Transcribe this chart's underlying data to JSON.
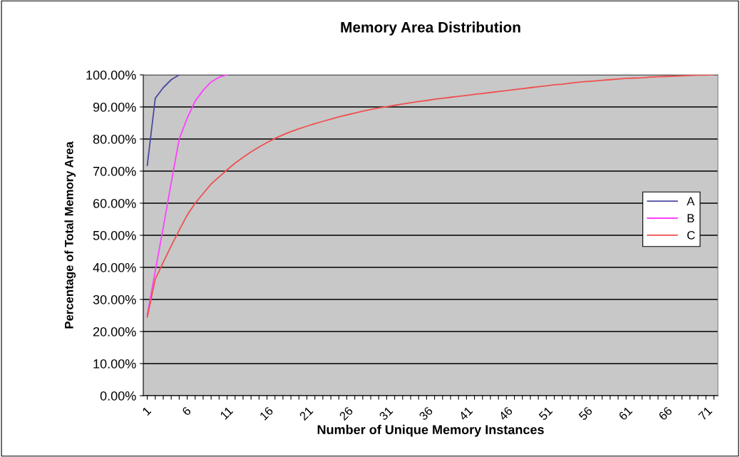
{
  "chart_data": {
    "type": "line",
    "title": "Memory Area Distribution",
    "xlabel": "Number of Unique Memory Instances",
    "ylabel": "Percentage of Total Memory Area",
    "categories": [
      "1",
      null,
      null,
      null,
      null,
      "6",
      null,
      null,
      null,
      null,
      "11",
      null,
      null,
      null,
      null,
      "16",
      null,
      null,
      null,
      null,
      "21",
      null,
      null,
      null,
      null,
      "26",
      null,
      null,
      null,
      null,
      "31",
      null,
      null,
      null,
      null,
      "36",
      null,
      null,
      null,
      null,
      "41",
      null,
      null,
      null,
      null,
      "46",
      null,
      null,
      null,
      null,
      "51",
      null,
      null,
      null,
      null,
      "56",
      null,
      null,
      null,
      null,
      "61",
      null,
      null,
      null,
      null,
      "66",
      null,
      null,
      null,
      null,
      "71",
      null
    ],
    "series": [
      {
        "name": "A",
        "color": "#4b4ba0",
        "values": [
          71.8,
          92.7,
          96.0,
          98.5,
          100,
          null,
          null,
          null,
          null,
          null,
          null,
          null,
          null,
          null,
          null,
          null,
          null,
          null,
          null,
          null,
          null,
          null,
          null,
          null,
          null,
          null,
          null,
          null,
          null,
          null,
          null,
          null,
          null,
          null,
          null,
          null,
          null,
          null,
          null,
          null,
          null,
          null,
          null,
          null,
          null,
          null,
          null,
          null,
          null,
          null,
          null,
          null,
          null,
          null,
          null,
          null,
          null,
          null,
          null,
          null,
          null,
          null,
          null,
          null,
          null,
          null,
          null,
          null,
          null,
          null,
          null,
          null
        ]
      },
      {
        "name": "B",
        "color": "#ff40ff",
        "values": [
          25.2,
          38.9,
          52.4,
          66.4,
          80.0,
          86.5,
          91.8,
          95.2,
          97.8,
          99.3,
          100,
          null,
          null,
          null,
          null,
          null,
          null,
          null,
          null,
          null,
          null,
          null,
          null,
          null,
          null,
          null,
          null,
          null,
          null,
          null,
          null,
          null,
          null,
          null,
          null,
          null,
          null,
          null,
          null,
          null,
          null,
          null,
          null,
          null,
          null,
          null,
          null,
          null,
          null,
          null,
          null,
          null,
          null,
          null,
          null,
          null,
          null,
          null,
          null,
          null,
          null,
          null,
          null,
          null,
          null,
          null,
          null,
          null,
          null,
          null,
          null,
          null
        ]
      },
      {
        "name": "C",
        "color": "#f05050",
        "values": [
          24.5,
          36.3,
          41.6,
          46.7,
          51.6,
          56.3,
          60.0,
          63.0,
          66.0,
          68.2,
          70.4,
          72.5,
          74.3,
          76.0,
          77.5,
          78.9,
          80.2,
          81.3,
          82.3,
          83.2,
          84.0,
          84.8,
          85.5,
          86.2,
          86.9,
          87.5,
          88.1,
          88.7,
          89.2,
          89.7,
          90.1,
          90.5,
          90.9,
          91.3,
          91.7,
          92.0,
          92.4,
          92.7,
          93.0,
          93.3,
          93.6,
          93.9,
          94.2,
          94.5,
          94.8,
          95.1,
          95.4,
          95.7,
          96.0,
          96.3,
          96.6,
          96.9,
          97.1,
          97.4,
          97.7,
          97.9,
          98.1,
          98.3,
          98.5,
          98.7,
          98.9,
          99.0,
          99.1,
          99.3,
          99.4,
          99.5,
          99.6,
          99.7,
          99.8,
          99.9,
          99.9,
          100
        ]
      }
    ],
    "ylim": [
      0,
      100
    ],
    "yticks": [
      {
        "value": 0,
        "label": "0.00%"
      },
      {
        "value": 10,
        "label": "10.00%"
      },
      {
        "value": 20,
        "label": "20.00%"
      },
      {
        "value": 30,
        "label": "30.00%"
      },
      {
        "value": 40,
        "label": "40.00%"
      },
      {
        "value": 50,
        "label": "50.00%"
      },
      {
        "value": 60,
        "label": "60.00%"
      },
      {
        "value": 70,
        "label": "70.00%"
      },
      {
        "value": 80,
        "label": "80.00%"
      },
      {
        "value": 90,
        "label": "90.00%"
      },
      {
        "value": 100,
        "label": "100.00%"
      }
    ],
    "grid": "y",
    "legend": "right",
    "marker": "none",
    "line_style": "solid"
  }
}
